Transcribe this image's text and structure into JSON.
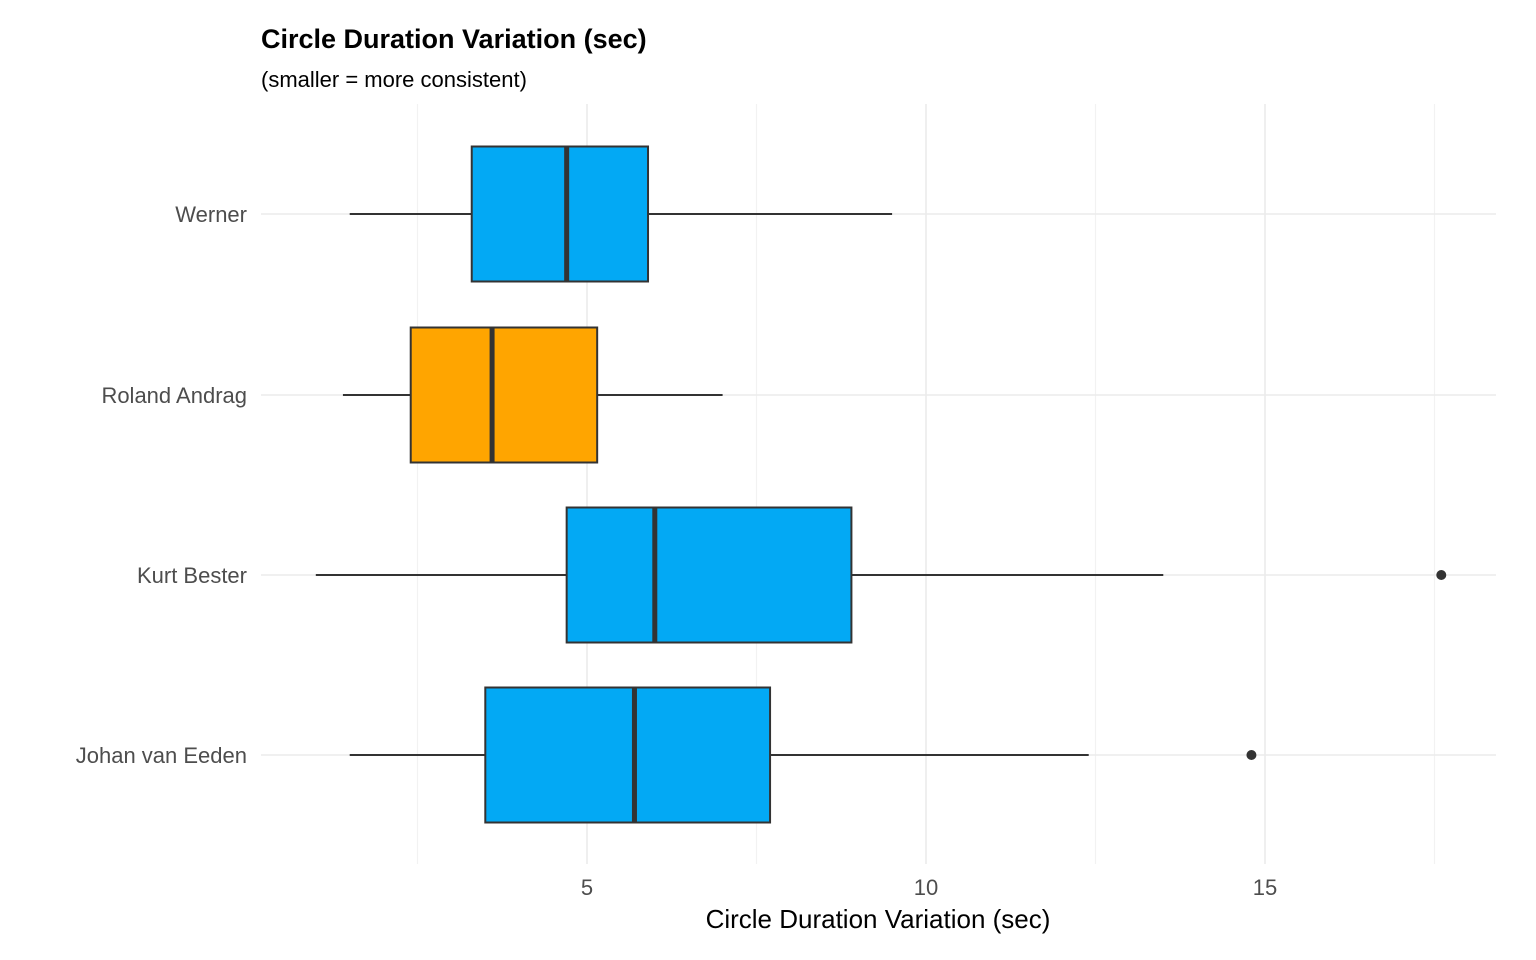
{
  "chart_data": {
    "type": "boxplot",
    "orientation": "horizontal",
    "title": "Circle Duration Variation (sec)",
    "subtitle": "(smaller = more consistent)",
    "xlabel": "Circle Duration Variation (sec)",
    "ylabel": "",
    "xlim": [
      0.3,
      18.9
    ],
    "x_ticks": [
      5,
      10,
      15
    ],
    "x_tick_labels": [
      "5",
      "10",
      "15"
    ],
    "x_minor_ticks": [
      2.5,
      7.5,
      12.5,
      17.5
    ],
    "grid": true,
    "legend": "none",
    "categories": [
      "Werner",
      "Roland Andrag",
      "Kurt Bester",
      "Johan van Eeden"
    ],
    "boxes": [
      {
        "name": "Werner",
        "whisker_low": 1.5,
        "q1": 3.3,
        "median": 4.7,
        "q3": 5.9,
        "whisker_high": 9.5,
        "outliers": [],
        "color": "#03A9F4"
      },
      {
        "name": "Roland Andrag",
        "whisker_low": 1.4,
        "q1": 2.4,
        "median": 3.6,
        "q3": 5.15,
        "whisker_high": 7.0,
        "outliers": [],
        "color": "#FFA500"
      },
      {
        "name": "Kurt Bester",
        "whisker_low": 1.0,
        "q1": 4.7,
        "median": 6.0,
        "q3": 8.9,
        "whisker_high": 13.5,
        "outliers": [
          17.6
        ],
        "color": "#03A9F4"
      },
      {
        "name": "Johan van Eeden",
        "whisker_low": 1.5,
        "q1": 3.5,
        "median": 5.7,
        "q3": 7.7,
        "whisker_high": 12.4,
        "outliers": [
          14.8
        ],
        "color": "#03A9F4"
      }
    ]
  }
}
